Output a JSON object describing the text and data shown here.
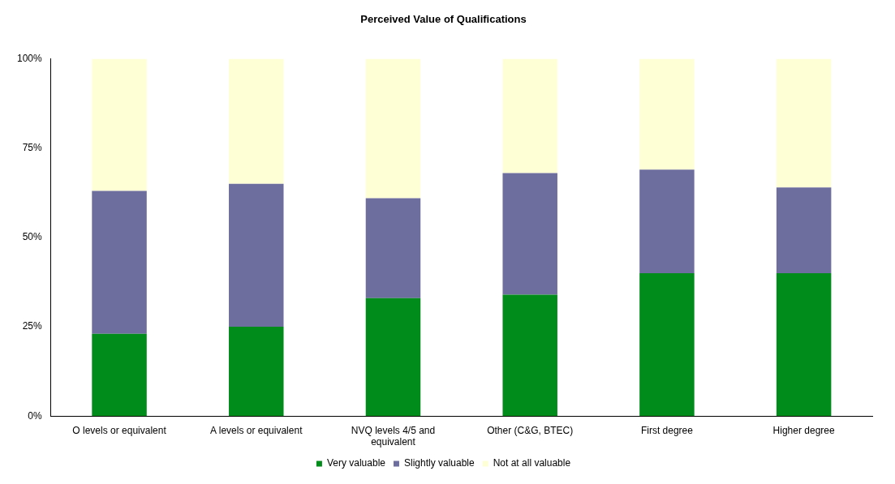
{
  "chart_data": {
    "type": "bar",
    "title": "Perceived Value of Qualifications",
    "stacked": true,
    "categories": [
      "O levels or equivalent",
      "A levels or equivalent",
      "NVQ levels 4/5 and equivalent",
      "Other (C&G, BTEC)",
      "First degree",
      "Higher degree"
    ],
    "series": [
      {
        "name": "Very valuable",
        "color": "#008c1a",
        "values": [
          23,
          25,
          33,
          34,
          40,
          40
        ]
      },
      {
        "name": "Slightly valuable",
        "color": "#6e6e9e",
        "values": [
          40,
          40,
          28,
          34,
          29,
          24
        ]
      },
      {
        "name": "Not at all valuable",
        "color": "#ffffd6",
        "values": [
          37,
          35,
          39,
          32,
          31,
          36
        ]
      }
    ],
    "ylim": [
      0,
      100
    ],
    "yticks": [
      {
        "value": 0,
        "label": "0%"
      },
      {
        "value": 25,
        "label": "25%"
      },
      {
        "value": 50,
        "label": "50%"
      },
      {
        "value": 75,
        "label": "75%"
      },
      {
        "value": 100,
        "label": "100%"
      }
    ],
    "grid": false,
    "legend": "bottom"
  }
}
